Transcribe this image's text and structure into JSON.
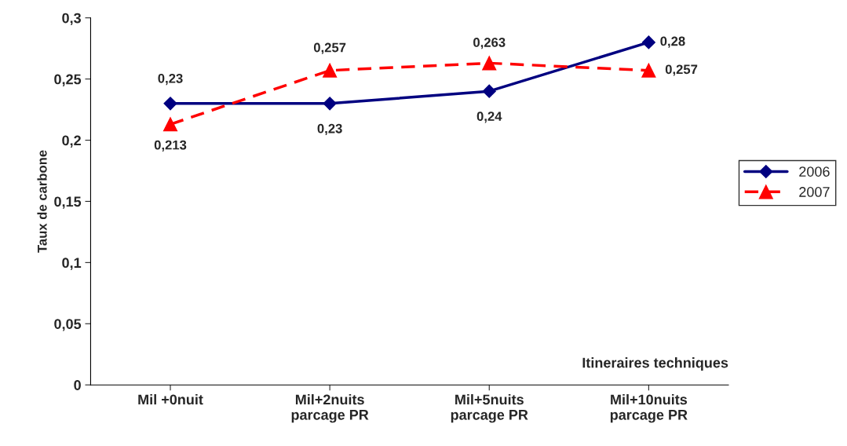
{
  "chart_data": {
    "type": "line",
    "xlabel": "Itineraires techniques",
    "ylabel": "Taux de carbone",
    "categories": [
      "Mil +0nuit",
      "Mil+2nuits\nparcage PR",
      "Mil+5nuits\nparcage PR",
      "Mil+10nuits\nparcage PR"
    ],
    "series": [
      {
        "name": "2006",
        "color": "#000080",
        "marker": "diamond",
        "line_style": "solid",
        "values": [
          0.23,
          0.23,
          0.24,
          0.28
        ],
        "value_labels": [
          "0,23",
          "0,23",
          "0,24",
          "0,28"
        ]
      },
      {
        "name": "2007",
        "color": "#ff0000",
        "marker": "triangle",
        "line_style": "dashed",
        "values": [
          0.213,
          0.257,
          0.263,
          0.257
        ],
        "value_labels": [
          "0,213",
          "0,257",
          "0,263",
          "0,257"
        ]
      }
    ],
    "ylim": [
      0,
      0.3
    ],
    "yticks": [
      0,
      {
        "value": 0.05,
        "label": "0,05"
      },
      {
        "value": 0.1,
        "label": "0,1"
      },
      {
        "value": 0.15,
        "label": "0,15"
      },
      {
        "value": 0.2,
        "label": "0,2"
      },
      {
        "value": 0.25,
        "label": "0,25"
      },
      {
        "value": 0.3,
        "label": "0,3"
      }
    ],
    "grid": false,
    "legend": "right"
  }
}
